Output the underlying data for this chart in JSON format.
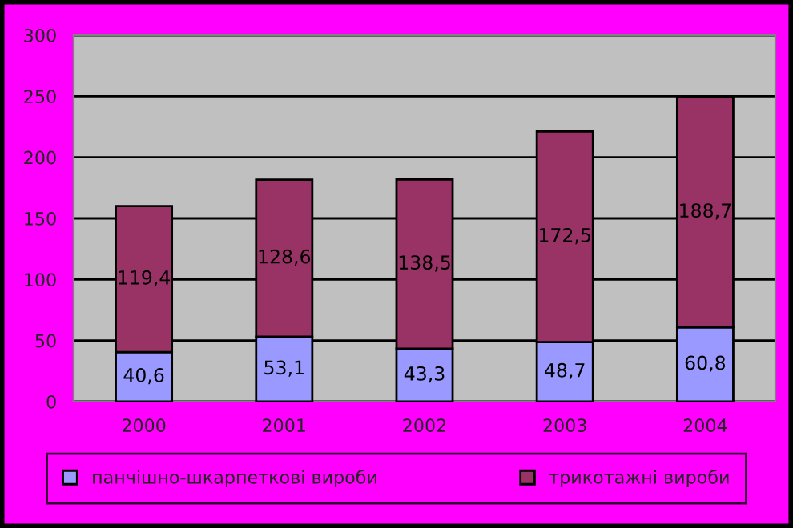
{
  "chart_data": {
    "type": "bar",
    "stacked": true,
    "categories": [
      "2000",
      "2001",
      "2002",
      "2003",
      "2004"
    ],
    "series": [
      {
        "name": "панчішно-шкарпеткові вироби",
        "color": "#9999ff",
        "values": [
          40.6,
          53.1,
          43.3,
          48.7,
          60.8
        ],
        "value_labels": [
          "40,6",
          "53,1",
          "43,3",
          "48,7",
          "60,8"
        ]
      },
      {
        "name": "трикотажні вироби",
        "color": "#993366",
        "values": [
          119.4,
          128.6,
          138.5,
          172.5,
          188.7
        ],
        "value_labels": [
          "119,4",
          "128,6",
          "138,5",
          "172,5",
          "188,7"
        ]
      }
    ],
    "ylim": [
      0,
      300
    ],
    "yticks": [
      0,
      50,
      100,
      150,
      200,
      250,
      300
    ],
    "grid": "y",
    "legend": "bottom"
  }
}
